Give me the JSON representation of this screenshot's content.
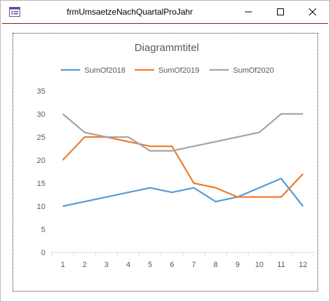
{
  "window": {
    "title": "frmUmsaetzeNachQuartalProJahr",
    "app_icon": "form-icon",
    "controls": [
      "minimize-icon",
      "maximize-icon",
      "close-icon"
    ]
  },
  "colors": {
    "title_accent": "#8b1c24",
    "axis": "#d9d9d9",
    "text": "#595959"
  },
  "chart_data": {
    "type": "line",
    "title": "Diagrammtitel",
    "x": [
      1,
      2,
      3,
      4,
      5,
      6,
      7,
      8,
      9,
      10,
      11,
      12
    ],
    "x_labels": [
      "1",
      "2",
      "3",
      "4",
      "5",
      "6",
      "7",
      "8",
      "9",
      "10",
      "11",
      "12"
    ],
    "ylim": [
      0,
      35
    ],
    "y_ticks": [
      "0",
      "5",
      "10",
      "15",
      "20",
      "25",
      "30",
      "35"
    ],
    "grid": false,
    "legend": "top",
    "series": [
      {
        "name": "SumOf2018",
        "color": "#5b9bd5",
        "values": [
          10,
          11,
          12,
          13,
          14,
          13,
          14,
          11,
          12,
          14,
          16,
          10
        ]
      },
      {
        "name": "SumOf2019",
        "color": "#ed7d31",
        "values": [
          20,
          25,
          25,
          24,
          23,
          23,
          15,
          14,
          12,
          12,
          12,
          17
        ]
      },
      {
        "name": "SumOf2020",
        "color": "#a5a5a5",
        "values": [
          30,
          26,
          25,
          25,
          22,
          22,
          23,
          24,
          25,
          26,
          30,
          30
        ]
      }
    ]
  }
}
